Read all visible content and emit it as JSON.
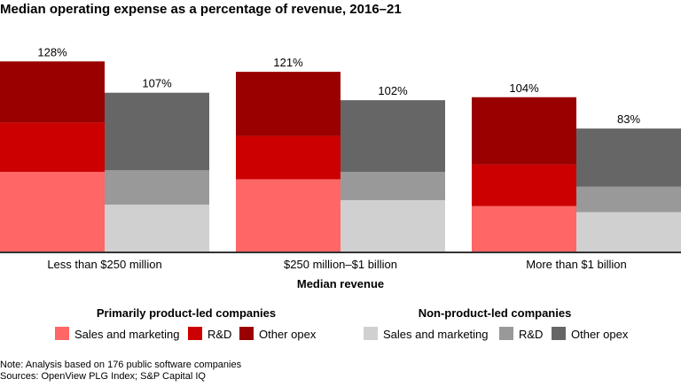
{
  "chart_data": {
    "type": "bar",
    "stacked": true,
    "title": "Median operating expense as a percentage of revenue, 2016–21",
    "xlabel": "Median revenue",
    "ylabel": "",
    "ylim": [
      0,
      130
    ],
    "grid": false,
    "categories": [
      "Less than $250 million",
      "$250 million–$1 billion",
      "More than $1 billion"
    ],
    "groups": [
      {
        "name": "Primarily product-led companies",
        "totals_labels": [
          "128%",
          "121%",
          "104%"
        ],
        "series": [
          {
            "name": "Sales and marketing",
            "color": "#ff6666",
            "values": [
              54,
              49,
              31
            ]
          },
          {
            "name": "R&D",
            "color": "#cc0000",
            "values": [
              33,
              29,
              28
            ]
          },
          {
            "name": "Other opex",
            "color": "#990000",
            "values": [
              41,
              43,
              45
            ]
          }
        ]
      },
      {
        "name": "Non-product-led companies",
        "totals_labels": [
          "107%",
          "102%",
          "83%"
        ],
        "series": [
          {
            "name": "Sales and marketing",
            "color": "#d0d0d0",
            "values": [
              32,
              35,
              27
            ]
          },
          {
            "name": "R&D",
            "color": "#999999",
            "values": [
              23,
              19,
              17
            ]
          },
          {
            "name": "Other opex",
            "color": "#666666",
            "values": [
              52,
              48,
              39
            ]
          }
        ]
      }
    ],
    "legend_placement": "bottom"
  },
  "notes": {
    "note": "Note: Analysis based on 176 public software companies",
    "sources": "Sources: OpenView PLG Index; S&P Capital IQ"
  }
}
